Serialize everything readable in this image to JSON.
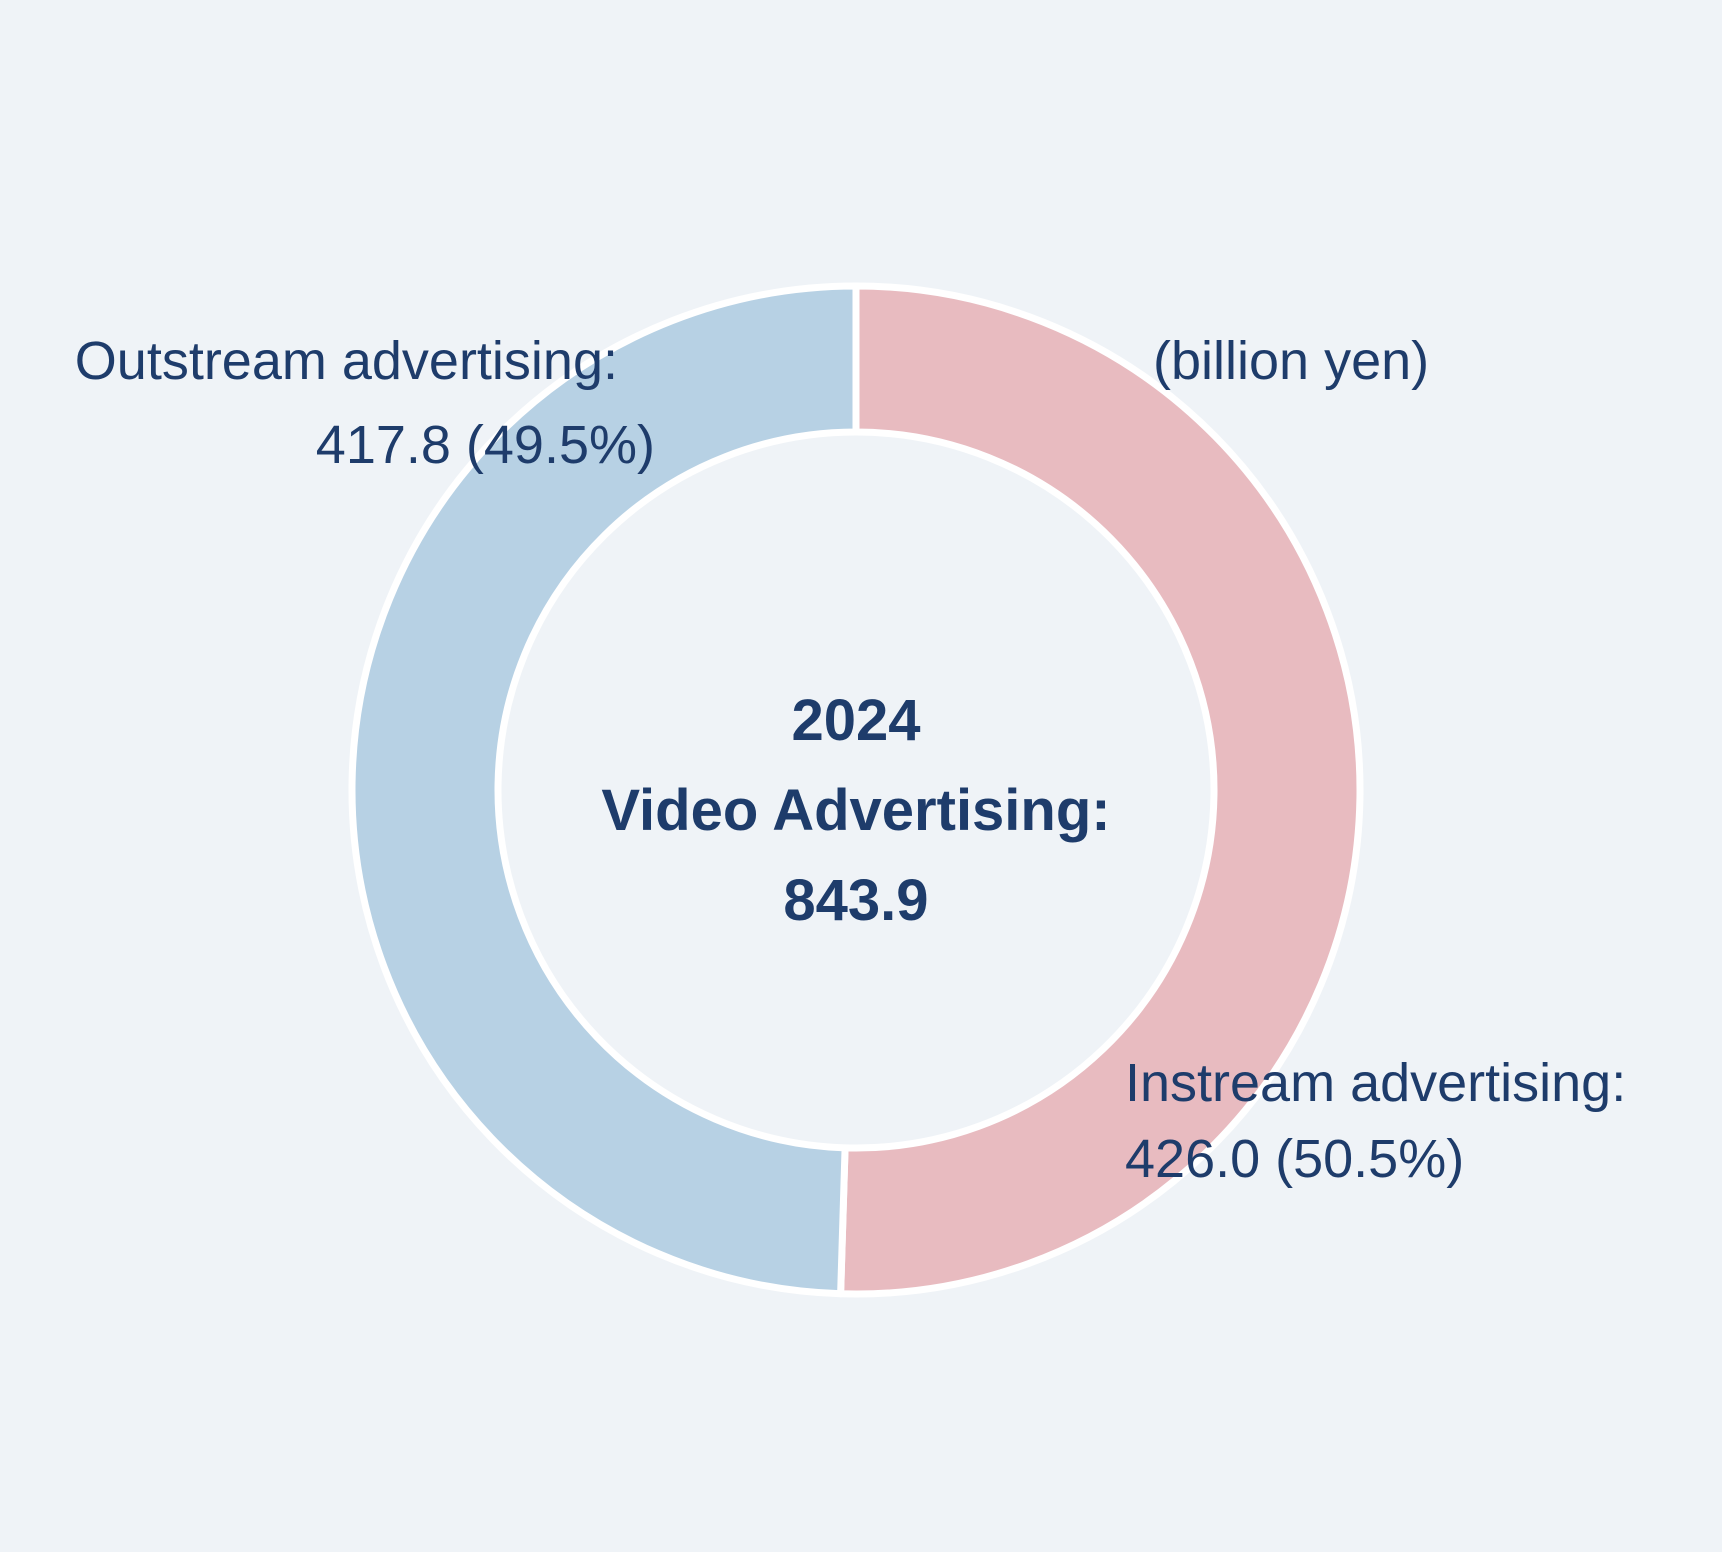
{
  "colors": {
    "background": "#eff3f7",
    "text": "#1e3c6b",
    "slice_stroke": "#ffffff",
    "instream": "#e8bbc0",
    "outstream": "#b7d1e4"
  },
  "chart_data": {
    "type": "pie",
    "subtype": "donut",
    "title_lines": [
      "2024",
      "Video Advertising:",
      "843.9"
    ],
    "unit_label": "(billion yen)",
    "total": 843.9,
    "series": [
      {
        "key": "instream",
        "name": "Instream advertising",
        "value": 426.0,
        "percent": 50.5,
        "color": "#e8bbc0",
        "label_line1": "Instream advertising:",
        "label_line2": "426.0 (50.5%)"
      },
      {
        "key": "outstream",
        "name": "Outstream advertising",
        "value": 417.8,
        "percent": 49.5,
        "color": "#b7d1e4",
        "label_line1": "Outstream advertising:",
        "label_line2": "417.8 (49.5%)"
      }
    ],
    "layout": {
      "start_angle_deg": -90,
      "direction": "clockwise",
      "legend": "none",
      "labels": "outside",
      "slice_stroke_color": "#ffffff"
    }
  }
}
